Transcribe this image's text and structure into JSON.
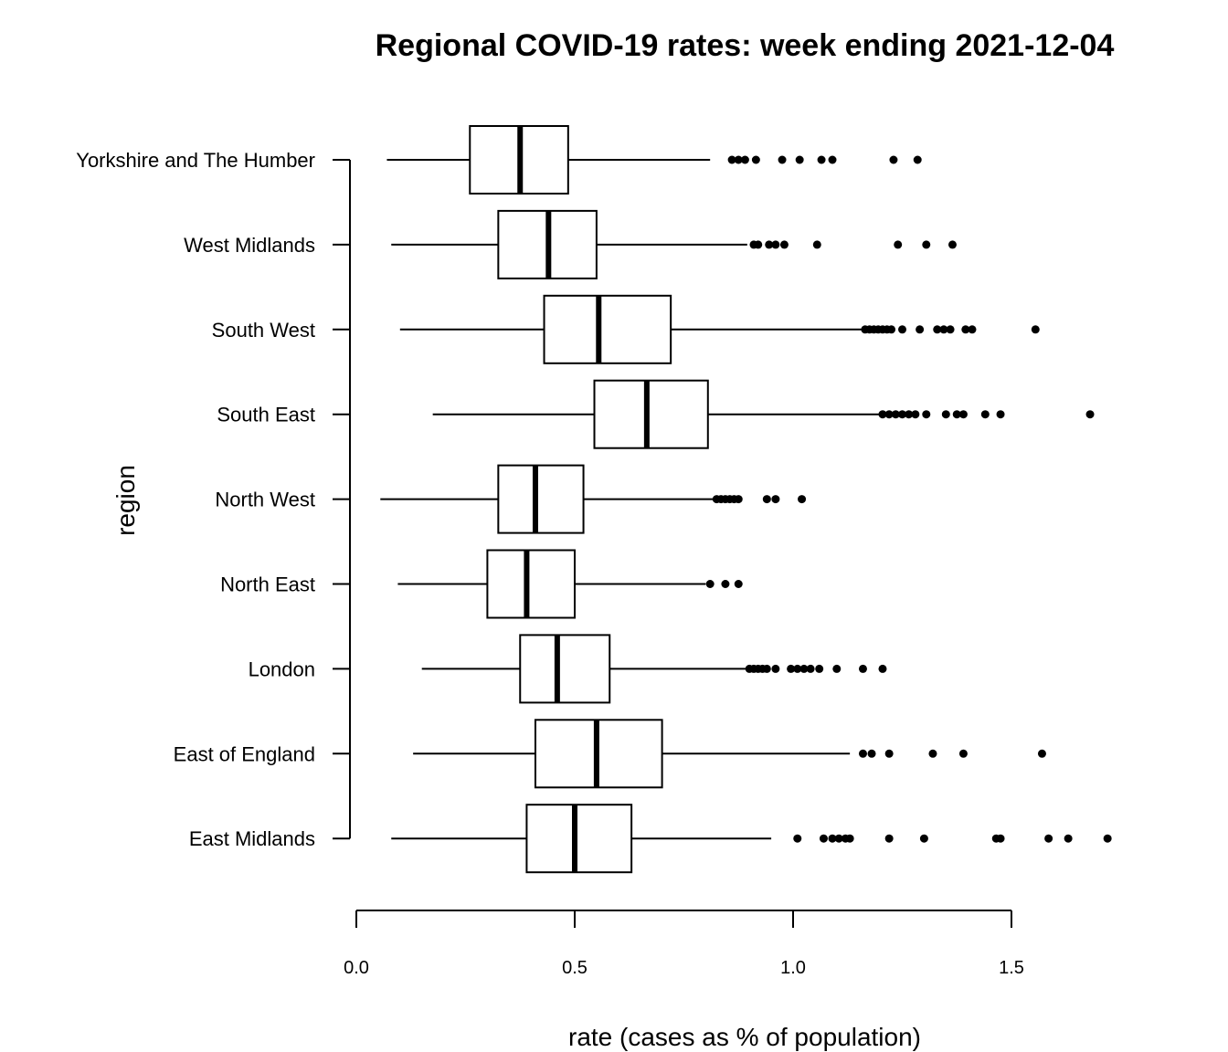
{
  "chart_data": {
    "type": "boxplot",
    "orientation": "horizontal",
    "title": "Regional COVID-19 rates: week ending 2021-12-04",
    "xlabel": "rate (cases as % of population)",
    "ylabel": "region",
    "xlim": [
      0.0,
      1.75
    ],
    "xticks": [
      "0.0",
      "0.5",
      "1.0",
      "1.5"
    ],
    "grid": false,
    "categories": [
      "Yorkshire and The Humber",
      "West Midlands",
      "South West",
      "South East",
      "North West",
      "North East",
      "London",
      "East of England",
      "East Midlands"
    ],
    "boxes": [
      {
        "min": 0.07,
        "q1": 0.26,
        "median": 0.375,
        "q3": 0.485,
        "max": 0.81,
        "outliers": [
          0.86,
          0.875,
          0.89,
          0.915,
          0.975,
          1.015,
          1.065,
          1.09,
          1.23,
          1.285
        ]
      },
      {
        "min": 0.08,
        "q1": 0.325,
        "median": 0.44,
        "q3": 0.55,
        "max": 0.895,
        "outliers": [
          0.91,
          0.92,
          0.945,
          0.96,
          0.98,
          1.055,
          1.24,
          1.305,
          1.365
        ]
      },
      {
        "min": 0.1,
        "q1": 0.43,
        "median": 0.555,
        "q3": 0.72,
        "max": 1.165,
        "outliers": [
          1.165,
          1.175,
          1.185,
          1.195,
          1.205,
          1.215,
          1.225,
          1.25,
          1.29,
          1.33,
          1.345,
          1.36,
          1.395,
          1.41,
          1.555
        ]
      },
      {
        "min": 0.175,
        "q1": 0.545,
        "median": 0.665,
        "q3": 0.805,
        "max": 1.2,
        "outliers": [
          1.205,
          1.22,
          1.235,
          1.25,
          1.265,
          1.28,
          1.305,
          1.35,
          1.375,
          1.39,
          1.44,
          1.475,
          1.68
        ]
      },
      {
        "min": 0.055,
        "q1": 0.325,
        "median": 0.41,
        "q3": 0.52,
        "max": 0.82,
        "outliers": [
          0.825,
          0.835,
          0.845,
          0.855,
          0.865,
          0.875,
          0.94,
          0.96,
          1.02
        ]
      },
      {
        "min": 0.095,
        "q1": 0.3,
        "median": 0.39,
        "q3": 0.5,
        "max": 0.8,
        "outliers": [
          0.81,
          0.845,
          0.875
        ]
      },
      {
        "min": 0.15,
        "q1": 0.375,
        "median": 0.46,
        "q3": 0.58,
        "max": 0.895,
        "outliers": [
          0.9,
          0.91,
          0.92,
          0.93,
          0.94,
          0.96,
          0.995,
          1.01,
          1.025,
          1.04,
          1.06,
          1.1,
          1.16,
          1.205
        ]
      },
      {
        "min": 0.13,
        "q1": 0.41,
        "median": 0.55,
        "q3": 0.7,
        "max": 1.13,
        "outliers": [
          1.16,
          1.18,
          1.22,
          1.32,
          1.39,
          1.57
        ]
      },
      {
        "min": 0.08,
        "q1": 0.39,
        "median": 0.5,
        "q3": 0.63,
        "max": 0.95,
        "outliers": [
          1.01,
          1.07,
          1.09,
          1.105,
          1.12,
          1.13,
          1.22,
          1.3,
          1.465,
          1.475,
          1.585,
          1.63,
          1.72
        ]
      }
    ]
  }
}
